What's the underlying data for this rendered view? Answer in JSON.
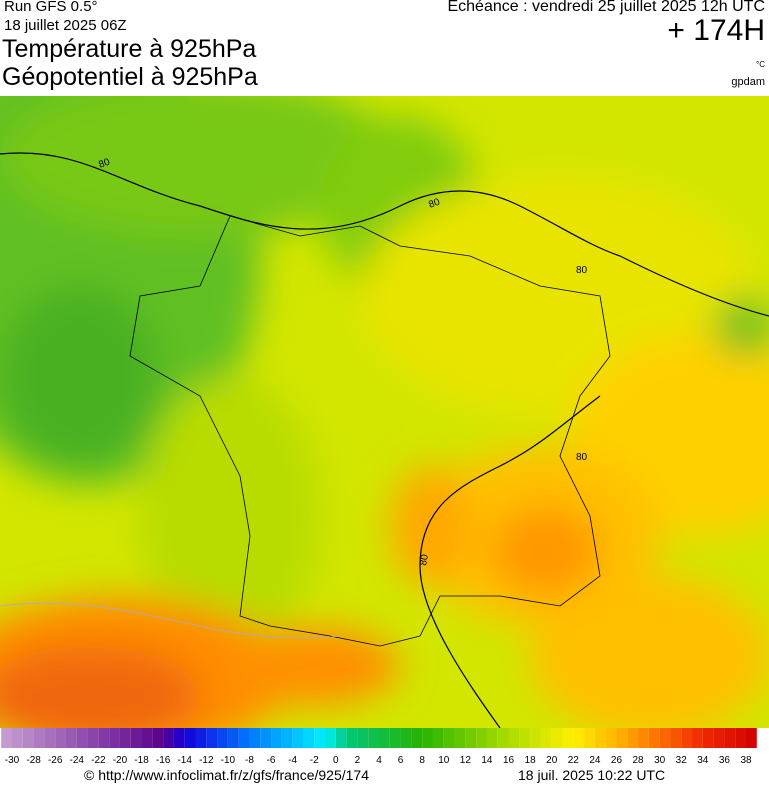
{
  "header": {
    "run": "Run GFS 0.5°",
    "run_date": "18 juillet 2025 06Z",
    "title": "Température à 925hPa",
    "subtitle": "Géopotentiel à 925hPa",
    "valid": "Echéance : vendredi 25 juillet 2025 12h UTC",
    "lead": "+ 174H",
    "unit_temp": "°C",
    "unit_geo": "gpdam"
  },
  "map": {
    "contour_labels": [
      "80",
      "80",
      "80",
      "80",
      "80"
    ]
  },
  "legend": {
    "ticks": [
      -30,
      -28,
      -26,
      -24,
      -22,
      -20,
      -18,
      -16,
      -14,
      -12,
      -10,
      -8,
      -6,
      -4,
      -2,
      0,
      2,
      4,
      6,
      8,
      10,
      12,
      14,
      16,
      18,
      20,
      22,
      24,
      26,
      28,
      30,
      32,
      34,
      36,
      38
    ]
  },
  "footer": {
    "source": "© http://www.infoclimat.fr/z/gfs/france/925/174",
    "generated": "18 juil. 2025 10:22 UTC"
  }
}
